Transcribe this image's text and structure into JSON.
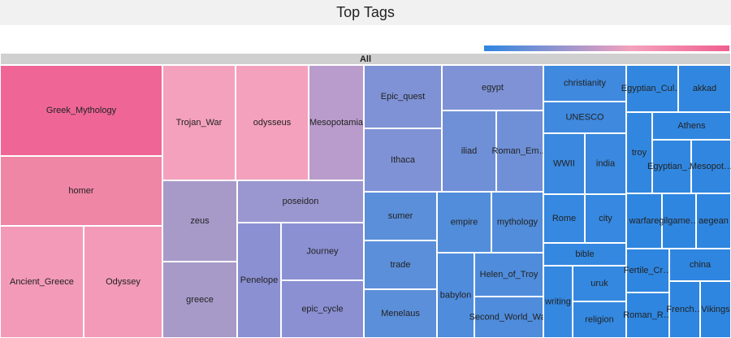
{
  "chart_data": {
    "type": "treemap",
    "title": "Top Tags",
    "root": "All",
    "min_color": "#2e86e0",
    "max_color": "#ef5f8f",
    "nodes": [
      {
        "label": "Greek_Mythology",
        "value": 224,
        "color": "#ef6696"
      },
      {
        "label": "homer",
        "value": 172,
        "color": "#f086a6"
      },
      {
        "label": "Ancient_Greece",
        "value": 141,
        "color": "#f39ab8"
      },
      {
        "label": "Odyssey",
        "value": 133,
        "color": "#f39ab8"
      },
      {
        "label": "Trojan_War",
        "value": 128,
        "color": "#f4a1bd"
      },
      {
        "label": "odysseus",
        "value": 128,
        "color": "#f4a1bd"
      },
      {
        "label": "Mesopotamia",
        "value": 97,
        "color": "#b99bcc"
      },
      {
        "label": "zeus",
        "value": 92,
        "color": "#a79ac9"
      },
      {
        "label": "greece",
        "value": 86,
        "color": "#a79ac9"
      },
      {
        "label": "poseidon",
        "value": 81,
        "color": "#9a96cf"
      },
      {
        "label": "Penelope",
        "value": 76,
        "color": "#8b90d3"
      },
      {
        "label": "Journey",
        "value": 72,
        "color": "#8b90d3"
      },
      {
        "label": "epic_cycle",
        "value": 71,
        "color": "#8b90d3"
      },
      {
        "label": "Epic_quest",
        "value": 75,
        "color": "#7f92d6"
      },
      {
        "label": "Ithaca",
        "value": 75,
        "color": "#7f92d6"
      },
      {
        "label": "egypt",
        "value": 70,
        "color": "#7f92d6"
      },
      {
        "label": "iliad",
        "value": 67,
        "color": "#6f90d7"
      },
      {
        "label": "Roman_Em…",
        "value": 58,
        "color": "#6f90d7"
      },
      {
        "label": "sumer",
        "value": 54,
        "color": "#5b8fd9"
      },
      {
        "label": "trade",
        "value": 54,
        "color": "#5b8fd9"
      },
      {
        "label": "Menelaus",
        "value": 53,
        "color": "#5b8fd9"
      },
      {
        "label": "empire",
        "value": 50,
        "color": "#528ddb"
      },
      {
        "label": "mythology",
        "value": 48,
        "color": "#528ddb"
      },
      {
        "label": "babylon",
        "value": 48,
        "color": "#4f8cdc"
      },
      {
        "label": "Helen_of_Troy",
        "value": 46,
        "color": "#4f8cdc"
      },
      {
        "label": "Second_World_War",
        "value": 43,
        "color": "#4f8cdc"
      },
      {
        "label": "christianity",
        "value": 46,
        "color": "#3f89df"
      },
      {
        "label": "UNESCO",
        "value": 40,
        "color": "#3f89df"
      },
      {
        "label": "WWII",
        "value": 38,
        "color": "#3a88df"
      },
      {
        "label": "india",
        "value": 38,
        "color": "#3a88df"
      },
      {
        "label": "Rome",
        "value": 31,
        "color": "#3688e0"
      },
      {
        "label": "city",
        "value": 31,
        "color": "#3688e0"
      },
      {
        "label": "bible",
        "value": 29,
        "color": "#3488e0"
      },
      {
        "label": "writing",
        "value": 32,
        "color": "#3488e0"
      },
      {
        "label": "uruk",
        "value": 29,
        "color": "#3488e0"
      },
      {
        "label": "religion",
        "value": 29,
        "color": "#3488e0"
      },
      {
        "label": "Egyptian_Cul…",
        "value": 37,
        "color": "#3187e0"
      },
      {
        "label": "akkad",
        "value": 38,
        "color": "#3187e0"
      },
      {
        "label": "troy",
        "value": 32,
        "color": "#3187e0"
      },
      {
        "label": "Athens",
        "value": 33,
        "color": "#3187e0"
      },
      {
        "label": "Egyptian_…",
        "value": 32,
        "color": "#3187e0"
      },
      {
        "label": "Mesopot…",
        "value": 32,
        "color": "#3187e0"
      },
      {
        "label": "warfare",
        "value": 30,
        "color": "#2f86e0"
      },
      {
        "label": "gilgame…",
        "value": 29,
        "color": "#2f86e0"
      },
      {
        "label": "aegean",
        "value": 29,
        "color": "#2f86e0"
      },
      {
        "label": "Fertile_Cr…",
        "value": 29,
        "color": "#2f86e0"
      },
      {
        "label": "china",
        "value": 30,
        "color": "#2f86e0"
      },
      {
        "label": "Roman_R…",
        "value": 29,
        "color": "#2e86e0"
      },
      {
        "label": "French…",
        "value": 26,
        "color": "#2e86e0"
      },
      {
        "label": "Vikings",
        "value": 26,
        "color": "#2e86e0"
      }
    ]
  }
}
